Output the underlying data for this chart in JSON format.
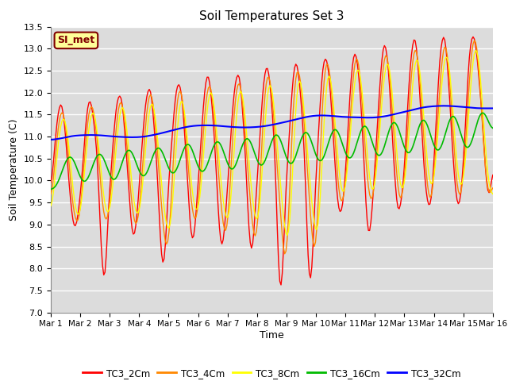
{
  "title": "Soil Temperatures Set 3",
  "xlabel": "Time",
  "ylabel": "Soil Temperature (C)",
  "ylim": [
    7.0,
    13.5
  ],
  "yticks": [
    7.0,
    7.5,
    8.0,
    8.5,
    9.0,
    9.5,
    10.0,
    10.5,
    11.0,
    11.5,
    12.0,
    12.5,
    13.0,
    13.5
  ],
  "xtick_labels": [
    "Mar 1",
    "Mar 2",
    "Mar 3",
    "Mar 4",
    "Mar 5",
    "Mar 6",
    "Mar 7",
    "Mar 8",
    "Mar 9",
    "Mar 10",
    "Mar 11",
    "Mar 12",
    "Mar 13",
    "Mar 14",
    "Mar 15",
    "Mar 16"
  ],
  "series_colors": {
    "TC3_2Cm": "#ff0000",
    "TC3_4Cm": "#ff8800",
    "TC3_8Cm": "#ffff00",
    "TC3_16Cm": "#00bb00",
    "TC3_32Cm": "#0000ff"
  },
  "annotation_text": "SI_met",
  "annotation_color": "#800000",
  "annotation_bg": "#ffff99",
  "bg_color": "#dcdcdc",
  "grid_color": "#ffffff",
  "fig_bg": "#ffffff"
}
